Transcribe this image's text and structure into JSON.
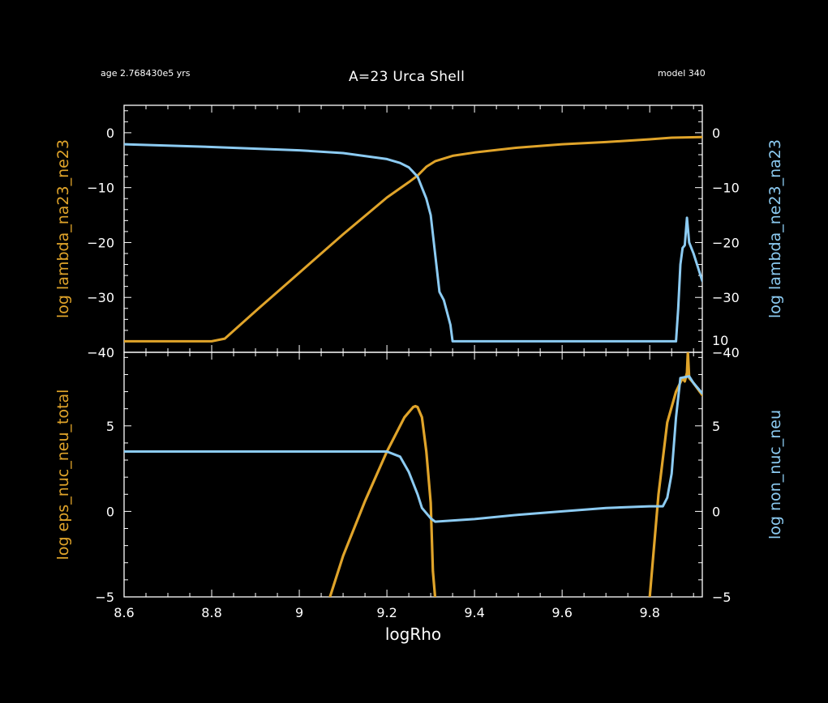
{
  "header": {
    "age": "age 2.768430e5 yrs",
    "title": "A=23 Urca Shell",
    "model": "model 340"
  },
  "colors": {
    "background": "#000000",
    "axes": "#ffffff",
    "orange": "#e0a42a",
    "blue": "#8ccbf2"
  },
  "chart_data": [
    {
      "type": "line",
      "panel": "top",
      "xlabel": "",
      "xlim": [
        8.6,
        9.92
      ],
      "x_ticks": [
        "8.6",
        "8.8",
        "9",
        "9.2",
        "9.4",
        "9.6",
        "9.8"
      ],
      "ylabel_left": "log lambda_na23_ne23",
      "ylabel_right": "log lambda_ne23_na23",
      "ylim": [
        -40,
        5
      ],
      "y_ticks_left": [
        "0",
        "−10",
        "−20",
        "−30",
        "−40"
      ],
      "y_ticks_right": [
        "0",
        "−10",
        "−20",
        "−30",
        "−40"
      ],
      "series": [
        {
          "axis": "left",
          "color": "#e0a42a",
          "x": [
            8.6,
            8.7,
            8.8,
            8.83,
            8.9,
            9.0,
            9.1,
            9.2,
            9.25,
            9.27,
            9.29,
            9.31,
            9.35,
            9.4,
            9.5,
            9.6,
            9.7,
            9.8,
            9.85,
            9.92
          ],
          "y": [
            -38,
            -38,
            -38,
            -37.5,
            -32.5,
            -25.5,
            -18.5,
            -11.8,
            -9,
            -7.8,
            -6.2,
            -5.2,
            -4.2,
            -3.6,
            -2.7,
            -2.1,
            -1.7,
            -1.2,
            -0.9,
            -0.8
          ]
        },
        {
          "axis": "right",
          "color": "#8ccbf2",
          "x": [
            8.6,
            8.8,
            9.0,
            9.1,
            9.2,
            9.23,
            9.25,
            9.27,
            9.28,
            9.29,
            9.3,
            9.31,
            9.32,
            9.33,
            9.345,
            9.35,
            9.5,
            9.7,
            9.86,
            9.865,
            9.87,
            9.875,
            9.88,
            9.885,
            9.89,
            9.9,
            9.92
          ],
          "y": [
            -2.1,
            -2.6,
            -3.2,
            -3.7,
            -4.8,
            -5.5,
            -6.3,
            -8,
            -10,
            -12,
            -15,
            -22,
            -29,
            -30.5,
            -35,
            -38,
            -38,
            -38,
            -38,
            -32,
            -24,
            -21,
            -20.5,
            -15.5,
            -20,
            -22,
            -27
          ]
        }
      ]
    },
    {
      "type": "line",
      "panel": "bottom",
      "xlabel": "logRho",
      "xlim": [
        8.6,
        9.92
      ],
      "x_ticks": [
        "8.6",
        "8.8",
        "9",
        "9.2",
        "9.4",
        "9.6",
        "9.8"
      ],
      "ylabel_left": "log eps_nuc_neu_total",
      "ylabel_right": "log non_nuc_neu",
      "ylim": [
        -5,
        9.3
      ],
      "y_ticks_left": [
        "5",
        "0",
        "−5"
      ],
      "y_ticks_right": [
        "10",
        "5",
        "0",
        "−5"
      ],
      "series": [
        {
          "axis": "left",
          "color": "#e0a42a",
          "x": [
            9.07,
            9.1,
            9.15,
            9.2,
            9.24,
            9.26,
            9.265,
            9.27,
            9.28,
            9.29,
            9.3,
            9.305,
            9.31
          ],
          "y": [
            -5,
            -2.6,
            0.6,
            3.5,
            5.5,
            6.1,
            6.15,
            6.1,
            5.5,
            3.5,
            0.5,
            -3.5,
            -5
          ]
        },
        {
          "axis": "left",
          "color": "#e0a42a",
          "x": [
            9.8,
            9.81,
            9.82,
            9.84,
            9.86,
            9.875,
            9.88,
            9.885,
            9.887,
            9.89,
            9.9,
            9.92
          ],
          "y": [
            -5,
            -2,
            1,
            5.2,
            7,
            7.8,
            7.6,
            8.1,
            9.3,
            7.8,
            7.5,
            6.8
          ]
        },
        {
          "axis": "right",
          "color": "#8ccbf2",
          "x": [
            8.6,
            8.8,
            9.0,
            9.2,
            9.23,
            9.25,
            9.27,
            9.28,
            9.3,
            9.31,
            9.4,
            9.5,
            9.6,
            9.7,
            9.8,
            9.83,
            9.84,
            9.85,
            9.86,
            9.87,
            9.89,
            9.9,
            9.92
          ],
          "y": [
            3.5,
            3.5,
            3.5,
            3.5,
            3.2,
            2.3,
            1,
            0.2,
            -0.4,
            -0.6,
            -0.45,
            -0.2,
            0,
            0.2,
            0.3,
            0.3,
            0.8,
            2.2,
            5.5,
            7.8,
            7.9,
            7.5,
            6.9
          ]
        }
      ]
    }
  ]
}
